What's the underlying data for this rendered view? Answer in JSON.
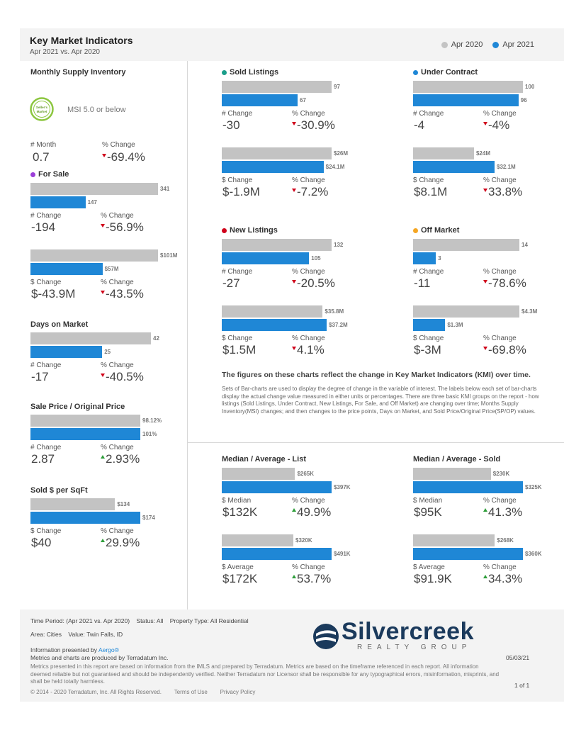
{
  "header": {
    "title": "Key Market Indicators",
    "subtitle": "Apr 2021 vs. Apr 2020"
  },
  "legend": [
    {
      "label": "Apr 2020",
      "color": "#c3c3c3"
    },
    {
      "label": "Apr 2021",
      "color": "#1f87d6"
    }
  ],
  "msi": {
    "title": "Monthly Supply Inventory",
    "badge_text": "Seller's Market",
    "note": "MSI 5.0 or below",
    "left_label": "# Month",
    "left_value": "0.7",
    "right_label": "% Change",
    "right_value": "-69.4%"
  },
  "colors": {
    "gray": "#c3c3c3",
    "blue": "#1f87d6",
    "down": "#d0021b",
    "up": "#2e9e3a"
  },
  "chart_data": [
    {
      "type": "bar",
      "id": "for-sale-count",
      "title": "For Sale",
      "title_dot": "#9b3fd8",
      "categories": [
        "Apr 2020",
        "Apr 2021"
      ],
      "values": [
        341,
        147
      ],
      "labels": [
        "341",
        "147"
      ],
      "change_label": "# Change",
      "change_value": "-194",
      "pct_label": "% Change",
      "pct_value": "-56.9%",
      "dir": "down"
    },
    {
      "type": "bar",
      "id": "for-sale-dollar",
      "title": "",
      "categories": [
        "Apr 2020",
        "Apr 2021"
      ],
      "values": [
        101,
        57
      ],
      "labels": [
        "$101M",
        "$57M"
      ],
      "change_label": "$ Change",
      "change_value": "$-43.9M",
      "pct_label": "% Change",
      "pct_value": "-43.5%",
      "dir": "down"
    },
    {
      "type": "bar",
      "id": "days-on-market",
      "title": "Days on Market",
      "categories": [
        "Apr 2020",
        "Apr 2021"
      ],
      "values": [
        42,
        25
      ],
      "labels": [
        "42",
        "25"
      ],
      "change_label": "# Change",
      "change_value": "-17",
      "pct_label": "% Change",
      "pct_value": "-40.5%",
      "dir": "down"
    },
    {
      "type": "bar",
      "id": "sale-price-orig",
      "title": "Sale Price / Original Price",
      "categories": [
        "Apr 2020",
        "Apr 2021"
      ],
      "values": [
        98.12,
        101
      ],
      "labels": [
        "98.12%",
        "101%"
      ],
      "change_label": "# Change",
      "change_value": "2.87",
      "pct_label": "% Change",
      "pct_value": "2.93%",
      "dir": "up"
    },
    {
      "type": "bar",
      "id": "sold-per-sqft",
      "title": "Sold $ per SqFt",
      "categories": [
        "Apr 2020",
        "Apr 2021"
      ],
      "values": [
        134,
        174
      ],
      "labels": [
        "$134",
        "$174"
      ],
      "change_label": "$ Change",
      "change_value": "$40",
      "pct_label": "% Change",
      "pct_value": "29.9%",
      "dir": "up"
    },
    {
      "type": "bar",
      "id": "sold-count",
      "title": "Sold Listings",
      "title_dot": "#1a9e8a",
      "categories": [
        "Apr 2020",
        "Apr 2021"
      ],
      "values": [
        97,
        67
      ],
      "labels": [
        "97",
        "67"
      ],
      "change_label": "# Change",
      "change_value": "-30",
      "pct_label": "% Change",
      "pct_value": "-30.9%",
      "dir": "down"
    },
    {
      "type": "bar",
      "id": "sold-dollar",
      "title": "",
      "categories": [
        "Apr 2020",
        "Apr 2021"
      ],
      "values": [
        26,
        24.1
      ],
      "labels": [
        "$26M",
        "$24.1M"
      ],
      "change_label": "$ Change",
      "change_value": "$-1.9M",
      "pct_label": "% Change",
      "pct_value": "-7.2%",
      "dir": "down"
    },
    {
      "type": "bar",
      "id": "under-contract-count",
      "title": "Under Contract",
      "title_dot": "#1f87d6",
      "categories": [
        "Apr 2020",
        "Apr 2021"
      ],
      "values": [
        100,
        96
      ],
      "labels": [
        "100",
        "96"
      ],
      "change_label": "# Change",
      "change_value": "-4",
      "pct_label": "% Change",
      "pct_value": "-4%",
      "dir": "down"
    },
    {
      "type": "bar",
      "id": "under-contract-dollar",
      "title": "",
      "categories": [
        "Apr 2020",
        "Apr 2021"
      ],
      "values": [
        24,
        32.1
      ],
      "labels": [
        "$24M",
        "$32.1M"
      ],
      "change_label": "$ Change",
      "change_value": "$8.1M",
      "pct_label": "% Change",
      "pct_value": "33.8%",
      "dir": "down"
    },
    {
      "type": "bar",
      "id": "new-listings-count",
      "title": "New Listings",
      "title_dot": "#d0021b",
      "categories": [
        "Apr 2020",
        "Apr 2021"
      ],
      "values": [
        132,
        105
      ],
      "labels": [
        "132",
        "105"
      ],
      "change_label": "# Change",
      "change_value": "-27",
      "pct_label": "% Change",
      "pct_value": "-20.5%",
      "dir": "down"
    },
    {
      "type": "bar",
      "id": "new-listings-dollar",
      "title": "",
      "categories": [
        "Apr 2020",
        "Apr 2021"
      ],
      "values": [
        35.8,
        37.2
      ],
      "labels": [
        "$35.8M",
        "$37.2M"
      ],
      "change_label": "$ Change",
      "change_value": "$1.5M",
      "pct_label": "% Change",
      "pct_value": "4.1%",
      "dir": "down"
    },
    {
      "type": "bar",
      "id": "off-market-count",
      "title": "Off Market",
      "title_dot": "#f5a623",
      "categories": [
        "Apr 2020",
        "Apr 2021"
      ],
      "values": [
        14,
        3
      ],
      "labels": [
        "14",
        "3"
      ],
      "change_label": "# Change",
      "change_value": "-11",
      "pct_label": "% Change",
      "pct_value": "-78.6%",
      "dir": "down"
    },
    {
      "type": "bar",
      "id": "off-market-dollar",
      "title": "",
      "categories": [
        "Apr 2020",
        "Apr 2021"
      ],
      "values": [
        4.3,
        1.3
      ],
      "labels": [
        "$4.3M",
        "$1.3M"
      ],
      "change_label": "$ Change",
      "change_value": "$-3M",
      "pct_label": "% Change",
      "pct_value": "-69.8%",
      "dir": "down"
    },
    {
      "type": "bar",
      "id": "list-median",
      "title": "Median / Average - List",
      "categories": [
        "Apr 2020",
        "Apr 2021"
      ],
      "values": [
        265,
        397
      ],
      "labels": [
        "$265K",
        "$397K"
      ],
      "change_label": "$ Median",
      "change_value": "$132K",
      "pct_label": "% Change",
      "pct_value": "49.9%",
      "dir": "up"
    },
    {
      "type": "bar",
      "id": "list-average",
      "title": "",
      "categories": [
        "Apr 2020",
        "Apr 2021"
      ],
      "values": [
        320,
        491
      ],
      "labels": [
        "$320K",
        "$491K"
      ],
      "change_label": "$ Average",
      "change_value": "$172K",
      "pct_label": "% Change",
      "pct_value": "53.7%",
      "dir": "up"
    },
    {
      "type": "bar",
      "id": "sold-median",
      "title": "Median / Average - Sold",
      "categories": [
        "Apr 2020",
        "Apr 2021"
      ],
      "values": [
        230,
        325
      ],
      "labels": [
        "$230K",
        "$325K"
      ],
      "change_label": "$ Median",
      "change_value": "$95K",
      "pct_label": "% Change",
      "pct_value": "41.3%",
      "dir": "up"
    },
    {
      "type": "bar",
      "id": "sold-average",
      "title": "",
      "categories": [
        "Apr 2020",
        "Apr 2021"
      ],
      "values": [
        268,
        360
      ],
      "labels": [
        "$268K",
        "$360K"
      ],
      "change_label": "$ Average",
      "change_value": "$91.9K",
      "pct_label": "% Change",
      "pct_value": "34.3%",
      "dir": "up"
    }
  ],
  "note": {
    "heading": "The figures on these charts reflect the change in Key Market Indicators (KMI) over time.",
    "body": "Sets of Bar-charts are used to display the degree of change in the variable of interest. The labels below each set of bar-charts display the actual change value measured in either units or percentages. There are three basic KMI groups on the report - how listings (Sold Listings, Under Contract, New Listings, For Sale, and Off Market) are changing over time; Months Supply Inventory(MSI) changes; and then changes to the price points, Days on Market, and Sold Price/Original Price(SP/OP) values."
  },
  "footer": {
    "time_period_label": "Time Period:",
    "time_period": "(Apr 2021 vs. Apr 2020)",
    "status_label": "Status:",
    "status": "All",
    "property_label": "Property Type:",
    "property": "All Residential",
    "area_label": "Area:",
    "area": "Cities",
    "value_label": "Value:",
    "value": "Twin Falls, ID",
    "presented": "Information presented by",
    "presented_brand": "Aergo®",
    "produced": "Metrics and charts are produced by Terradatum Inc.",
    "disclaimer": "Metrics presented in this report are based on information from the IMLS and prepared by Terradatum. Metrics are based on the timeframe referenced in each report. All information deemed reliable but not guaranteed and should be independently verified. Neither Terradatum nor Licensor shall be responsible for any typographical errors, misinformation, misprints, and shall be held totally harmless.",
    "copyright": "© 2014 - 2020 Terradatum, Inc. All Rights Reserved.",
    "terms": "Terms of Use",
    "privacy": "Privacy Policy",
    "date": "05/03/21",
    "page": "1 of 1",
    "logo_name": "Silvercreek",
    "logo_sub": "REALTY GROUP"
  }
}
